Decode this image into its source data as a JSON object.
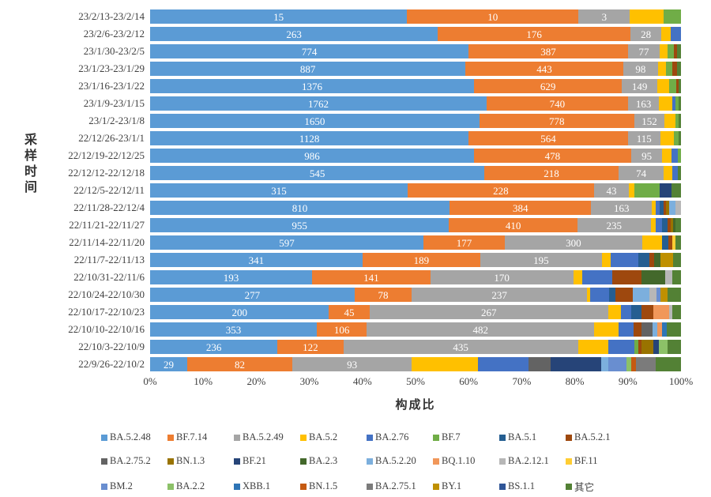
{
  "chart_data": {
    "type": "bar",
    "subtype": "horizontal-100pct-stacked",
    "xlabel": "构成比",
    "ylabel": "采样时间",
    "xlim": [
      "0%",
      "100%"
    ],
    "grid": false,
    "legend_position": "bottom",
    "x_ticks": [
      "0%",
      "10%",
      "20%",
      "30%",
      "40%",
      "50%",
      "60%",
      "70%",
      "80%",
      "90%",
      "100%"
    ],
    "series": [
      {
        "name": "BA.5.2.48",
        "color": "#5B9BD5"
      },
      {
        "name": "BF.7.14",
        "color": "#ED7D31"
      },
      {
        "name": "BA.5.2.49",
        "color": "#A5A5A5"
      },
      {
        "name": "BA.5.2",
        "color": "#FFC000"
      },
      {
        "name": "BA.2.76",
        "color": "#4472C4"
      },
      {
        "name": "BF.7",
        "color": "#70AD47"
      },
      {
        "name": "BA.5.1",
        "color": "#255E91"
      },
      {
        "name": "BA.5.2.1",
        "color": "#9E480E"
      },
      {
        "name": "BA.2.75.2",
        "color": "#636363"
      },
      {
        "name": "BN.1.3",
        "color": "#997300"
      },
      {
        "name": "BF.21",
        "color": "#264478"
      },
      {
        "name": "BA.2.3",
        "color": "#43682B"
      },
      {
        "name": "BA.5.2.20",
        "color": "#7CAFDD"
      },
      {
        "name": "BQ.1.10",
        "color": "#F1975A"
      },
      {
        "name": "BA.2.12.1",
        "color": "#B7B7B7"
      },
      {
        "name": "BF.11",
        "color": "#FFCD33"
      },
      {
        "name": "BM.2",
        "color": "#698ED0"
      },
      {
        "name": "BA.2.2",
        "color": "#8CC168"
      },
      {
        "name": "XBB.1",
        "color": "#2E75B6"
      },
      {
        "name": "BN.1.5",
        "color": "#C55A11"
      },
      {
        "name": "BA.2.75.1",
        "color": "#7B7B7B"
      },
      {
        "name": "BY.1",
        "color": "#BF9000"
      },
      {
        "name": "BS.1.1",
        "color": "#2F5597"
      },
      {
        "name": "其它",
        "color": "#538135"
      }
    ],
    "rows": [
      {
        "category": "23/2/13-23/2/14",
        "segments": [
          {
            "s": "BA.5.2.48",
            "pct": 48.4,
            "label": "15"
          },
          {
            "s": "BF.7.14",
            "pct": 32.3,
            "label": "10"
          },
          {
            "s": "BA.5.2.49",
            "pct": 9.7,
            "label": "3"
          },
          {
            "s": "BA.5.2",
            "pct": 6.4
          },
          {
            "s": "BF.7",
            "pct": 3.2
          }
        ]
      },
      {
        "category": "23/2/6-23/2/12",
        "segments": [
          {
            "s": "BA.5.2.48",
            "pct": 54.2,
            "label": "263"
          },
          {
            "s": "BF.7.14",
            "pct": 36.3,
            "label": "176"
          },
          {
            "s": "BA.5.2.49",
            "pct": 5.8,
            "label": "28"
          },
          {
            "s": "BA.5.2",
            "pct": 1.8
          },
          {
            "s": "BA.2.76",
            "pct": 1.9
          }
        ]
      },
      {
        "category": "23/1/30-23/2/5",
        "segments": [
          {
            "s": "BA.5.2.48",
            "pct": 60.0,
            "label": "774"
          },
          {
            "s": "BF.7.14",
            "pct": 30.0,
            "label": "387"
          },
          {
            "s": "BA.5.2.49",
            "pct": 6.0,
            "label": "77"
          },
          {
            "s": "BA.5.2",
            "pct": 1.4
          },
          {
            "s": "BF.7",
            "pct": 1.3
          },
          {
            "s": "BA.5.2.1",
            "pct": 0.6
          },
          {
            "s": "其它",
            "pct": 0.7
          }
        ]
      },
      {
        "category": "23/1/23-23/1/29",
        "segments": [
          {
            "s": "BA.5.2.48",
            "pct": 59.4,
            "label": "887"
          },
          {
            "s": "BF.7.14",
            "pct": 29.7,
            "label": "443"
          },
          {
            "s": "BA.5.2.49",
            "pct": 6.6,
            "label": "98"
          },
          {
            "s": "BA.5.2",
            "pct": 1.5
          },
          {
            "s": "BF.7",
            "pct": 1.2
          },
          {
            "s": "BA.5.2.1",
            "pct": 0.9
          },
          {
            "s": "其它",
            "pct": 0.7
          }
        ]
      },
      {
        "category": "23/1/16-23/1/22",
        "segments": [
          {
            "s": "BA.5.2.48",
            "pct": 61.0,
            "label": "1376"
          },
          {
            "s": "BF.7.14",
            "pct": 27.9,
            "label": "629"
          },
          {
            "s": "BA.5.2.49",
            "pct": 6.6,
            "label": "149"
          },
          {
            "s": "BA.5.2",
            "pct": 2.2
          },
          {
            "s": "BF.7",
            "pct": 1.4
          },
          {
            "s": "BA.5.2.1",
            "pct": 0.5
          },
          {
            "s": "其它",
            "pct": 0.4
          }
        ]
      },
      {
        "category": "23/1/9-23/1/15",
        "segments": [
          {
            "s": "BA.5.2.48",
            "pct": 63.4,
            "label": "1762"
          },
          {
            "s": "BF.7.14",
            "pct": 26.6,
            "label": "740"
          },
          {
            "s": "BA.5.2.49",
            "pct": 5.9,
            "label": "163"
          },
          {
            "s": "BA.5.2",
            "pct": 2.4
          },
          {
            "s": "BA.2.76",
            "pct": 0.7
          },
          {
            "s": "BF.7",
            "pct": 0.6
          },
          {
            "s": "其它",
            "pct": 0.4
          }
        ]
      },
      {
        "category": "23/1/2-23/1/8",
        "segments": [
          {
            "s": "BA.5.2.48",
            "pct": 62.0,
            "label": "1650"
          },
          {
            "s": "BF.7.14",
            "pct": 29.2,
            "label": "778"
          },
          {
            "s": "BA.5.2.49",
            "pct": 5.7,
            "label": "152"
          },
          {
            "s": "BA.5.2",
            "pct": 2.0
          },
          {
            "s": "BF.7",
            "pct": 0.6
          },
          {
            "s": "其它",
            "pct": 0.5
          }
        ]
      },
      {
        "category": "22/12/26-23/1/1",
        "segments": [
          {
            "s": "BA.5.2.48",
            "pct": 60.0,
            "label": "1128"
          },
          {
            "s": "BF.7.14",
            "pct": 30.0,
            "label": "564"
          },
          {
            "s": "BA.5.2.49",
            "pct": 6.1,
            "label": "115"
          },
          {
            "s": "BA.5.2",
            "pct": 2.6
          },
          {
            "s": "BF.7",
            "pct": 0.8
          },
          {
            "s": "其它",
            "pct": 0.5
          }
        ]
      },
      {
        "category": "22/12/19-22/12/25",
        "segments": [
          {
            "s": "BA.5.2.48",
            "pct": 61.0,
            "label": "986"
          },
          {
            "s": "BF.7.14",
            "pct": 29.6,
            "label": "478"
          },
          {
            "s": "BA.5.2.49",
            "pct": 5.9,
            "label": "95"
          },
          {
            "s": "BA.5.2",
            "pct": 1.7
          },
          {
            "s": "BA.2.76",
            "pct": 1.2
          },
          {
            "s": "BF.7",
            "pct": 0.6
          }
        ]
      },
      {
        "category": "22/12/12-22/12/18",
        "segments": [
          {
            "s": "BA.5.2.48",
            "pct": 63.0,
            "label": "545"
          },
          {
            "s": "BF.7.14",
            "pct": 25.2,
            "label": "218"
          },
          {
            "s": "BA.5.2.49",
            "pct": 8.6,
            "label": "74"
          },
          {
            "s": "BA.5.2",
            "pct": 1.5
          },
          {
            "s": "BA.2.76",
            "pct": 1.1
          },
          {
            "s": "其它",
            "pct": 0.6
          }
        ]
      },
      {
        "category": "22/12/5-22/12/11",
        "segments": [
          {
            "s": "BA.5.2.48",
            "pct": 48.5,
            "label": "315"
          },
          {
            "s": "BF.7.14",
            "pct": 35.1,
            "label": "228"
          },
          {
            "s": "BA.5.2.49",
            "pct": 6.6,
            "label": "43"
          },
          {
            "s": "BA.5.2",
            "pct": 1.0
          },
          {
            "s": "BF.7",
            "pct": 4.8
          },
          {
            "s": "BF.21",
            "pct": 2.2
          },
          {
            "s": "其它",
            "pct": 1.8
          }
        ]
      },
      {
        "category": "22/11/28-22/12/4",
        "segments": [
          {
            "s": "BA.5.2.48",
            "pct": 56.4,
            "label": "810"
          },
          {
            "s": "BF.7.14",
            "pct": 26.7,
            "label": "384"
          },
          {
            "s": "BA.5.2.49",
            "pct": 11.4,
            "label": "163"
          },
          {
            "s": "BA.5.2",
            "pct": 0.7
          },
          {
            "s": "BA.2.76",
            "pct": 0.8
          },
          {
            "s": "BA.5.1",
            "pct": 0.7
          },
          {
            "s": "BA.5.2.1",
            "pct": 0.5
          },
          {
            "s": "BN.1.3",
            "pct": 0.6
          },
          {
            "s": "BA.5.2.20",
            "pct": 1.2
          },
          {
            "s": "BA.2.12.1",
            "pct": 1.0
          }
        ]
      },
      {
        "category": "22/11/21-22/11/27",
        "segments": [
          {
            "s": "BA.5.2.48",
            "pct": 56.3,
            "label": "955"
          },
          {
            "s": "BF.7.14",
            "pct": 24.2,
            "label": "410"
          },
          {
            "s": "BA.5.2.49",
            "pct": 13.8,
            "label": "235"
          },
          {
            "s": "BA.5.2",
            "pct": 1.0
          },
          {
            "s": "BA.2.76",
            "pct": 1.2
          },
          {
            "s": "BA.5.1",
            "pct": 0.9
          },
          {
            "s": "BA.5.2.1",
            "pct": 0.6
          },
          {
            "s": "BN.1.3",
            "pct": 0.5
          },
          {
            "s": "BA.2.3",
            "pct": 0.5
          },
          {
            "s": "其它",
            "pct": 1.0
          }
        ]
      },
      {
        "category": "22/11/14-22/11/20",
        "segments": [
          {
            "s": "BA.5.2.48",
            "pct": 51.5,
            "label": "597"
          },
          {
            "s": "BF.7.14",
            "pct": 15.3,
            "label": "177"
          },
          {
            "s": "BA.5.2.49",
            "pct": 25.9,
            "label": "300"
          },
          {
            "s": "BA.5.2",
            "pct": 3.7
          },
          {
            "s": "BA.5.1",
            "pct": 1.2
          },
          {
            "s": "BA.5.2.1",
            "pct": 0.8
          },
          {
            "s": "BF.11",
            "pct": 0.6
          },
          {
            "s": "其它",
            "pct": 1.0
          }
        ]
      },
      {
        "category": "22/11/7-22/11/13",
        "segments": [
          {
            "s": "BA.5.2.48",
            "pct": 40.0,
            "label": "341"
          },
          {
            "s": "BF.7.14",
            "pct": 22.2,
            "label": "189"
          },
          {
            "s": "BA.5.2.49",
            "pct": 22.9,
            "label": "195"
          },
          {
            "s": "BA.5.2",
            "pct": 1.6
          },
          {
            "s": "BA.2.76",
            "pct": 5.2
          },
          {
            "s": "BA.5.1",
            "pct": 2.1
          },
          {
            "s": "BA.5.2.1",
            "pct": 1.0
          },
          {
            "s": "BA.2.3",
            "pct": 1.2
          },
          {
            "s": "BY.1",
            "pct": 2.3
          },
          {
            "s": "其它",
            "pct": 1.5
          }
        ]
      },
      {
        "category": "22/10/31-22/11/6",
        "segments": [
          {
            "s": "BA.5.2.48",
            "pct": 30.5,
            "label": "193"
          },
          {
            "s": "BF.7.14",
            "pct": 22.3,
            "label": "141"
          },
          {
            "s": "BA.5.2.49",
            "pct": 26.9,
            "label": "170"
          },
          {
            "s": "BA.5.2",
            "pct": 1.7
          },
          {
            "s": "BA.2.76",
            "pct": 5.6
          },
          {
            "s": "BA.5.2.1",
            "pct": 5.6
          },
          {
            "s": "BA.2.3",
            "pct": 4.4
          },
          {
            "s": "BA.2.12.1",
            "pct": 1.4
          },
          {
            "s": "其它",
            "pct": 1.6
          }
        ]
      },
      {
        "category": "22/10/24-22/10/30",
        "segments": [
          {
            "s": "BA.5.2.48",
            "pct": 38.5,
            "label": "277"
          },
          {
            "s": "BF.7.14",
            "pct": 10.8,
            "label": "78"
          },
          {
            "s": "BA.5.2.49",
            "pct": 33.0,
            "label": "237"
          },
          {
            "s": "BA.5.2",
            "pct": 0.6
          },
          {
            "s": "BA.2.76",
            "pct": 3.6
          },
          {
            "s": "BA.5.1",
            "pct": 1.1
          },
          {
            "s": "BA.5.2.1",
            "pct": 3.4
          },
          {
            "s": "BA.5.2.20",
            "pct": 3.0
          },
          {
            "s": "BA.2.12.1",
            "pct": 1.4
          },
          {
            "s": "BM.2",
            "pct": 0.7
          },
          {
            "s": "BY.1",
            "pct": 1.4
          },
          {
            "s": "其它",
            "pct": 2.5
          }
        ]
      },
      {
        "category": "22/10/17-22/10/23",
        "segments": [
          {
            "s": "BA.5.2.48",
            "pct": 33.7,
            "label": "200"
          },
          {
            "s": "BF.7.14",
            "pct": 7.6,
            "label": "45"
          },
          {
            "s": "BA.5.2.49",
            "pct": 45.0,
            "label": "267"
          },
          {
            "s": "BA.5.2",
            "pct": 2.4
          },
          {
            "s": "BA.2.76",
            "pct": 2.0
          },
          {
            "s": "BA.5.1",
            "pct": 1.8
          },
          {
            "s": "BA.5.2.1",
            "pct": 2.3
          },
          {
            "s": "BQ.1.10",
            "pct": 3.0
          },
          {
            "s": "BA.2.12.1",
            "pct": 0.6
          },
          {
            "s": "其它",
            "pct": 1.6
          }
        ]
      },
      {
        "category": "22/10/10-22/10/16",
        "segments": [
          {
            "s": "BA.5.2.48",
            "pct": 31.4,
            "label": "353"
          },
          {
            "s": "BF.7.14",
            "pct": 9.4,
            "label": "106"
          },
          {
            "s": "BA.5.2.49",
            "pct": 42.9,
            "label": "482"
          },
          {
            "s": "BA.5.2",
            "pct": 4.6
          },
          {
            "s": "BA.2.76",
            "pct": 2.8
          },
          {
            "s": "BA.5.2.1",
            "pct": 1.4
          },
          {
            "s": "BA.2.75.2",
            "pct": 2.1
          },
          {
            "s": "BA.5.2.20",
            "pct": 0.9
          },
          {
            "s": "BQ.1.10",
            "pct": 0.9
          },
          {
            "s": "XBB.1",
            "pct": 1.0
          },
          {
            "s": "其它",
            "pct": 2.6
          }
        ]
      },
      {
        "category": "22/10/3-22/10/9",
        "segments": [
          {
            "s": "BA.5.2.48",
            "pct": 24.0,
            "label": "236"
          },
          {
            "s": "BF.7.14",
            "pct": 12.4,
            "label": "122"
          },
          {
            "s": "BA.5.2.49",
            "pct": 44.2,
            "label": "435"
          },
          {
            "s": "BA.5.2",
            "pct": 5.7
          },
          {
            "s": "BA.2.76",
            "pct": 4.9
          },
          {
            "s": "BF.7",
            "pct": 0.7
          },
          {
            "s": "BA.5.2.1",
            "pct": 0.7
          },
          {
            "s": "BN.1.3",
            "pct": 2.2
          },
          {
            "s": "BF.21",
            "pct": 1.1
          },
          {
            "s": "BA.2.2",
            "pct": 1.6
          },
          {
            "s": "其它",
            "pct": 2.5
          }
        ]
      },
      {
        "category": "22/9/26-22/10/2",
        "segments": [
          {
            "s": "BA.5.2.48",
            "pct": 7.0,
            "label": "29"
          },
          {
            "s": "BF.7.14",
            "pct": 19.8,
            "label": "82"
          },
          {
            "s": "BA.5.2.49",
            "pct": 22.5,
            "label": "93"
          },
          {
            "s": "BA.5.2",
            "pct": 12.5
          },
          {
            "s": "BA.2.76",
            "pct": 9.5
          },
          {
            "s": "BA.2.75.2",
            "pct": 4.2
          },
          {
            "s": "BF.21",
            "pct": 9.5
          },
          {
            "s": "BA.5.2.20",
            "pct": 1.3
          },
          {
            "s": "BM.2",
            "pct": 3.5
          },
          {
            "s": "BA.2.2",
            "pct": 0.8
          },
          {
            "s": "BN.1.5",
            "pct": 1.0
          },
          {
            "s": "BA.2.75.1",
            "pct": 3.7
          },
          {
            "s": "其它",
            "pct": 4.7
          }
        ]
      }
    ]
  }
}
